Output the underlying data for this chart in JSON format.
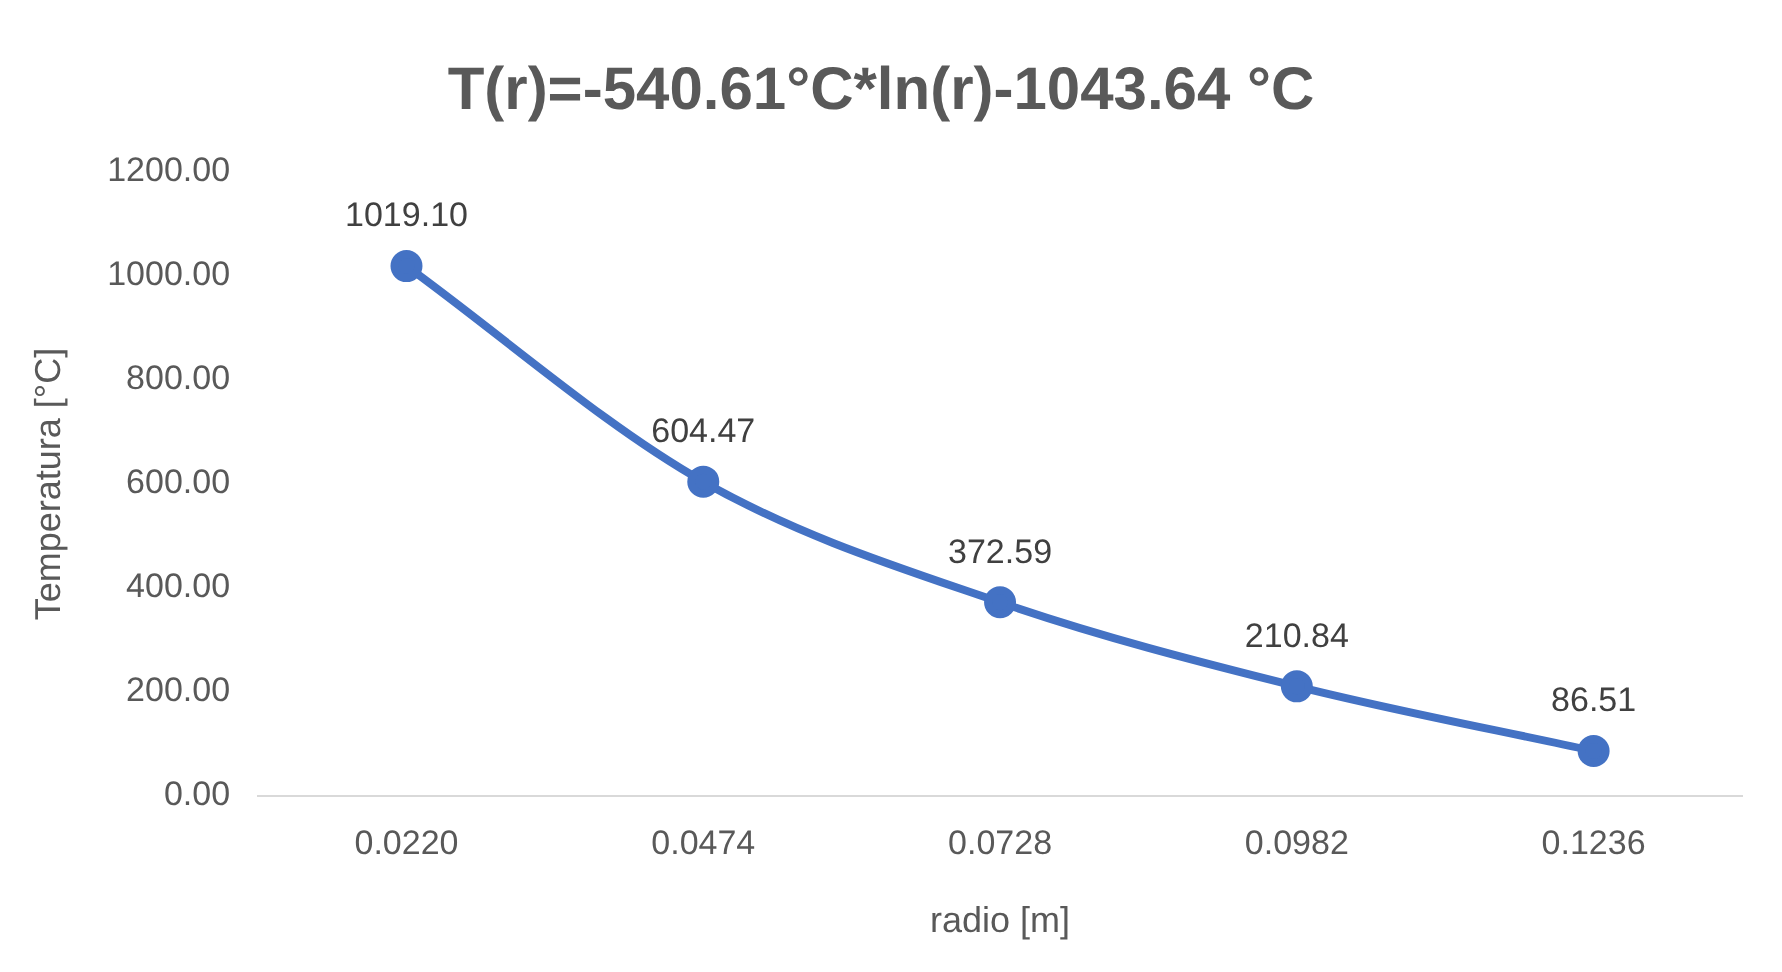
{
  "chart_data": {
    "type": "line",
    "title": "T(r)=-540.61°C*ln(r)-1043.64 °C",
    "xlabel": "radio [m]",
    "ylabel": "Temperatura [°C]",
    "categories": [
      "0.0220",
      "0.0474",
      "0.0728",
      "0.0982",
      "0.1236"
    ],
    "series": [
      {
        "color": "#4472c4",
        "values": [
          1019.1,
          604.47,
          372.59,
          210.84,
          86.51
        ],
        "value_labels": [
          "1019.10",
          "604.47",
          "372.59",
          "210.84",
          "86.51"
        ]
      }
    ],
    "ylim": [
      0,
      1200
    ],
    "yticks": [
      {
        "value": 0,
        "label": "0.00"
      },
      {
        "value": 200,
        "label": "200.00"
      },
      {
        "value": 400,
        "label": "400.00"
      },
      {
        "value": 600,
        "label": "600.00"
      },
      {
        "value": 800,
        "label": "800.00"
      },
      {
        "value": 1000,
        "label": "1000.00"
      },
      {
        "value": 1200,
        "label": "1200.00"
      }
    ],
    "grid": false,
    "legend": false,
    "marker": "circle",
    "line_style": "solid"
  }
}
